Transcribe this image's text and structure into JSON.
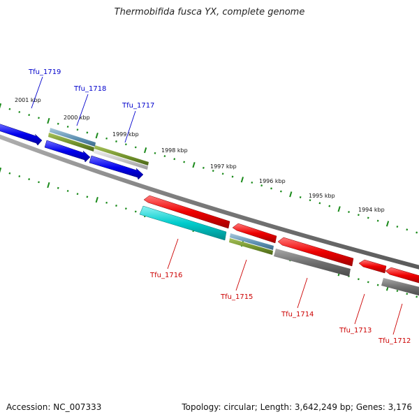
{
  "title": "Thermobifida fusca YX, complete genome",
  "accession": "Accession: NC_007333",
  "topology": "Topology: circular; Length: 3,642,249 bp; Genes: 3,176",
  "kbp_labels": [
    "2001 kbp",
    "2000 kbp",
    "1999 kbp",
    "1998 kbp",
    "1997 kbp",
    "1996 kbp",
    "1995 kbp",
    "1994 kbp"
  ],
  "genes_forward": [
    "Tfu_1719",
    "Tfu_1718",
    "Tfu_1717"
  ],
  "genes_reverse": [
    "Tfu_1716",
    "Tfu_1715",
    "Tfu_1714",
    "Tfu_1713",
    "Tfu_1712"
  ],
  "colors": {
    "forward_gene": "#0000ee",
    "reverse_gene": "#ee0000",
    "backbone": "#808080",
    "tick": "#1a8a1a",
    "rna": "#00cccc",
    "misc_steel": "#5b8fb0",
    "misc_olive": "#6f8f2a",
    "misc_gray": "#707070"
  }
}
